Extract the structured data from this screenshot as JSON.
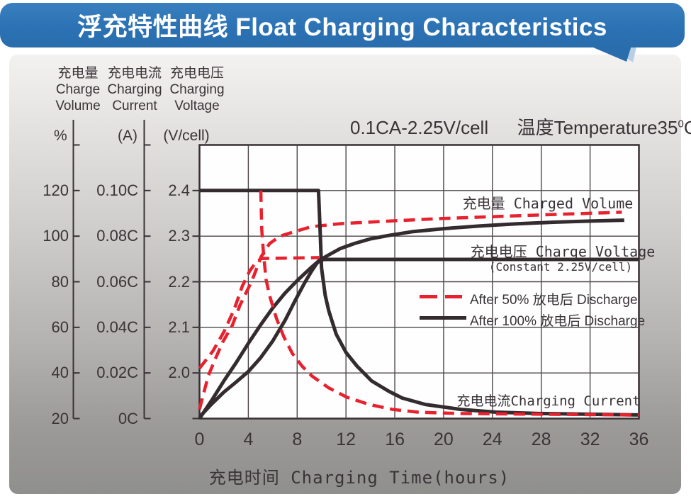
{
  "banner": {
    "title": "浮充特性曲线 Float Charging Characteristics"
  },
  "annotation": {
    "condition": "0.1CA-2.25V/cell",
    "temperature_prefix": "温度Temperature35",
    "temperature_sup": "0",
    "temperature_unit": "C"
  },
  "left_axes": [
    {
      "id": "charge-volume",
      "header_lines": [
        "充电量",
        "Charge",
        "Volume"
      ],
      "unit": "%",
      "tick_labels": [
        "120",
        "100",
        "80",
        "60",
        "40",
        "20"
      ]
    },
    {
      "id": "charging-current",
      "header_lines": [
        "充电电流",
        "Charging",
        "Current"
      ],
      "unit": "(A)",
      "tick_labels": [
        "0.10C",
        "0.08C",
        "0.06C",
        "0.04C",
        "0.02C",
        "0C"
      ]
    },
    {
      "id": "charging-voltage",
      "header_lines": [
        "充电电压",
        "Charging",
        "Voltage"
      ],
      "unit": "(V/cell)",
      "tick_labels": [
        "2.4",
        "2.3",
        "2.2",
        "2.1",
        "2.0",
        ""
      ]
    }
  ],
  "x_axis": {
    "title": "充电时间 Charging Time(hours)",
    "tick_labels": [
      "0",
      "4",
      "8",
      "12",
      "16",
      "20",
      "24",
      "28",
      "32",
      "36"
    ]
  },
  "curve_labels": {
    "charged_volume": "充电量 Charged Volume",
    "charge_voltage": "充电电压 Charge Voltage",
    "constant_note": "(Constant 2.25V/cell)",
    "charging_current": "充电电流Charging Current"
  },
  "legend": [
    {
      "label": "After 50% 放电后 Discharge",
      "style": "dashed",
      "color": "#e7212e"
    },
    {
      "label": "After 100% 放电后 Discharge",
      "style": "solid",
      "color": "#332b2e"
    }
  ],
  "colors": {
    "banner_blue": "#2b72b4",
    "banner_tail_light": "#b9cfe6",
    "curve_red": "#e7212e",
    "curve_black": "#332b2e",
    "grid": "#4c4648",
    "plot_border": "#362f33",
    "text": "#393338"
  },
  "chart_data": {
    "type": "line",
    "title": "浮充特性曲线 Float Charging Characteristics",
    "condition": "0.1CA-2.25V/cell  温度Temperature 35°C",
    "x": {
      "label": "充电时间 Charging Time(hours)",
      "range": [
        0,
        36
      ],
      "ticks": [
        0,
        4,
        8,
        12,
        16,
        20,
        24,
        28,
        32,
        36
      ],
      "gridlines_hours": [
        4,
        8,
        12,
        16,
        20,
        24,
        28,
        32
      ]
    },
    "y_axes": {
      "volume_pct": {
        "label": "充电量 Charge Volume (%)",
        "range": [
          20,
          140
        ],
        "ticks": [
          120,
          100,
          80,
          60,
          40,
          20
        ],
        "gridline_levels": [
          120,
          100,
          80,
          60,
          40
        ]
      },
      "current_CA": {
        "label": "充电电流 Charging Current (A)",
        "range": [
          0,
          0.12
        ],
        "ticks": [
          0.1,
          0.08,
          0.06,
          0.04,
          0.02,
          0
        ]
      },
      "voltage_V": {
        "label": "充电电压 Charging Voltage (V/cell)",
        "range": [
          1.9,
          2.5
        ],
        "ticks": [
          2.4,
          2.3,
          2.2,
          2.1,
          2.0
        ]
      }
    },
    "legend_position": "middle-right",
    "grid": true,
    "series": [
      {
        "name": "charged-volume-after-50pct-discharge",
        "axis": "volume_pct",
        "style": "dashed",
        "color": "#e7212e",
        "points": [
          [
            0,
            24
          ],
          [
            0.7,
            38.5
          ],
          [
            1.2,
            45
          ],
          [
            1.9,
            53.5
          ],
          [
            2.7,
            61
          ],
          [
            3.3,
            69.5
          ],
          [
            4.3,
            80.5
          ],
          [
            5.05,
            91
          ],
          [
            5.75,
            96.8
          ],
          [
            6.6,
            100
          ],
          [
            7.5,
            101.5
          ],
          [
            9.2,
            104.2
          ],
          [
            11.6,
            105.5
          ],
          [
            16.2,
            106.8
          ],
          [
            19.7,
            107.7
          ],
          [
            24.3,
            108.6
          ],
          [
            29,
            109.5
          ],
          [
            34.6,
            110.5
          ]
        ]
      },
      {
        "name": "charge-voltage-after-50pct-discharge",
        "axis": "voltage_V",
        "style": "dashed",
        "color": "#e7212e",
        "points": [
          [
            0,
            2.01
          ],
          [
            1.1,
            2.048
          ],
          [
            2,
            2.09
          ],
          [
            2.85,
            2.14
          ],
          [
            3.5,
            2.19
          ],
          [
            4.1,
            2.223
          ],
          [
            4.6,
            2.242
          ],
          [
            5.05,
            2.251
          ],
          [
            9.8,
            2.253
          ]
        ]
      },
      {
        "name": "charged-volume-after-100pct-discharge",
        "axis": "volume_pct",
        "style": "solid",
        "color": "#332b2e",
        "points": [
          [
            0,
            20
          ],
          [
            1,
            28
          ],
          [
            2,
            36.5
          ],
          [
            3,
            44.5
          ],
          [
            4,
            53
          ],
          [
            5,
            61
          ],
          [
            6,
            68.5
          ],
          [
            7,
            75
          ],
          [
            8,
            80.5
          ],
          [
            9,
            85.5
          ],
          [
            9.8,
            89.3
          ],
          [
            10.5,
            91.5
          ],
          [
            11.5,
            94.5
          ],
          [
            12.7,
            96.8
          ],
          [
            14,
            98.8
          ],
          [
            15.5,
            100.3
          ],
          [
            17.5,
            102
          ],
          [
            20,
            103.3
          ],
          [
            23,
            104.5
          ],
          [
            26,
            105.4
          ],
          [
            29,
            106.1
          ],
          [
            32,
            106.6
          ],
          [
            34.8,
            107
          ]
        ]
      },
      {
        "name": "charge-voltage-after-100pct-discharge",
        "axis": "voltage_V",
        "style": "solid",
        "color": "#332b2e",
        "points": [
          [
            0.05,
            1.905
          ],
          [
            1,
            1.932
          ],
          [
            2,
            1.958
          ],
          [
            3,
            1.98
          ],
          [
            4,
            2.003
          ],
          [
            5,
            2.033
          ],
          [
            6,
            2.07
          ],
          [
            7,
            2.115
          ],
          [
            7.8,
            2.157
          ],
          [
            8.6,
            2.197
          ],
          [
            9.2,
            2.224
          ],
          [
            9.6,
            2.24
          ],
          [
            9.9,
            2.248
          ],
          [
            10.3,
            2.249
          ],
          [
            36,
            2.249
          ]
        ]
      },
      {
        "name": "charging-current-after-100pct-discharge",
        "axis": "current_CA",
        "style": "solid",
        "color": "#332b2e",
        "points": [
          [
            0,
            0.1
          ],
          [
            9.75,
            0.1
          ],
          [
            9.9,
            0.08
          ],
          [
            10,
            0.066
          ],
          [
            10.3,
            0.054
          ],
          [
            10.6,
            0.047
          ],
          [
            11.2,
            0.037
          ],
          [
            12,
            0.029
          ],
          [
            12.9,
            0.023
          ],
          [
            14.1,
            0.0165
          ],
          [
            15.5,
            0.012
          ],
          [
            16.6,
            0.009
          ],
          [
            18.5,
            0.0062
          ],
          [
            21.4,
            0.004
          ],
          [
            24.3,
            0.0028
          ],
          [
            27.8,
            0.0022
          ],
          [
            36,
            0.0016
          ]
        ]
      },
      {
        "name": "charging-current-after-50pct-discharge",
        "axis": "current_CA",
        "style": "dashed",
        "color": "#e7212e",
        "points": [
          [
            5.02,
            0.1
          ],
          [
            5.1,
            0.083
          ],
          [
            5.25,
            0.072
          ],
          [
            5.45,
            0.061
          ],
          [
            5.75,
            0.0538
          ],
          [
            6.3,
            0.044
          ],
          [
            6.9,
            0.036
          ],
          [
            7.6,
            0.0286
          ],
          [
            8.4,
            0.023
          ],
          [
            9.2,
            0.0187
          ],
          [
            10.6,
            0.0134
          ],
          [
            12.1,
            0.0093
          ],
          [
            13.9,
            0.0062
          ],
          [
            15.8,
            0.004
          ],
          [
            17.9,
            0.0028
          ],
          [
            21.4,
            0.0022
          ],
          [
            27.8,
            0.0019
          ],
          [
            36,
            0.0016
          ]
        ]
      }
    ]
  }
}
